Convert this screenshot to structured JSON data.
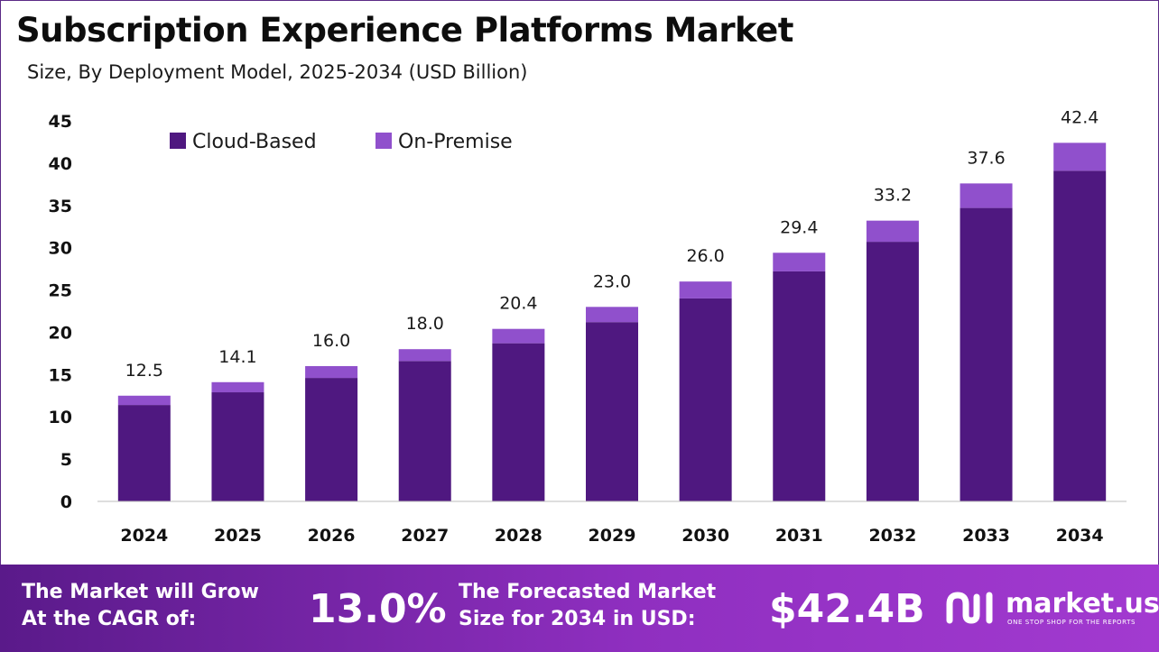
{
  "header": {
    "title": "Subscription Experience Platforms Market",
    "subtitle": "Size, By Deployment Model, 2025-2034 (USD Billion)"
  },
  "chart_data": {
    "type": "bar",
    "stacked": true,
    "categories": [
      "2024",
      "2025",
      "2026",
      "2027",
      "2028",
      "2029",
      "2030",
      "2031",
      "2032",
      "2033",
      "2034"
    ],
    "series": [
      {
        "name": "Cloud-Based",
        "color": "#4f1880",
        "values": [
          11.4,
          12.9,
          14.6,
          16.6,
          18.7,
          21.2,
          24.0,
          27.2,
          30.7,
          34.7,
          39.1
        ]
      },
      {
        "name": "On-Premise",
        "color": "#9050cc",
        "values": [
          1.1,
          1.2,
          1.4,
          1.4,
          1.7,
          1.8,
          2.0,
          2.2,
          2.5,
          2.9,
          3.3
        ]
      }
    ],
    "totals": [
      "12.5",
      "14.1",
      "16.0",
      "18.0",
      "20.4",
      "23.0",
      "26.0",
      "29.4",
      "33.2",
      "37.6",
      "42.4"
    ],
    "yticks": [
      "0",
      "5",
      "10",
      "15",
      "20",
      "25",
      "30",
      "35",
      "40",
      "45"
    ],
    "ylim": [
      0,
      45
    ],
    "grid": false,
    "legend_position": "top-left"
  },
  "footer": {
    "cagr_label_line1": "The Market will Grow",
    "cagr_label_line2": "At the CAGR of:",
    "cagr_value": "13.0%",
    "forecast_label_line1": "The Forecasted Market",
    "forecast_label_line2": "Size for 2034 in USD:",
    "forecast_value": "$42.4B"
  },
  "brand": {
    "name": "market.us",
    "tagline": "ONE STOP SHOP FOR THE REPORTS"
  }
}
